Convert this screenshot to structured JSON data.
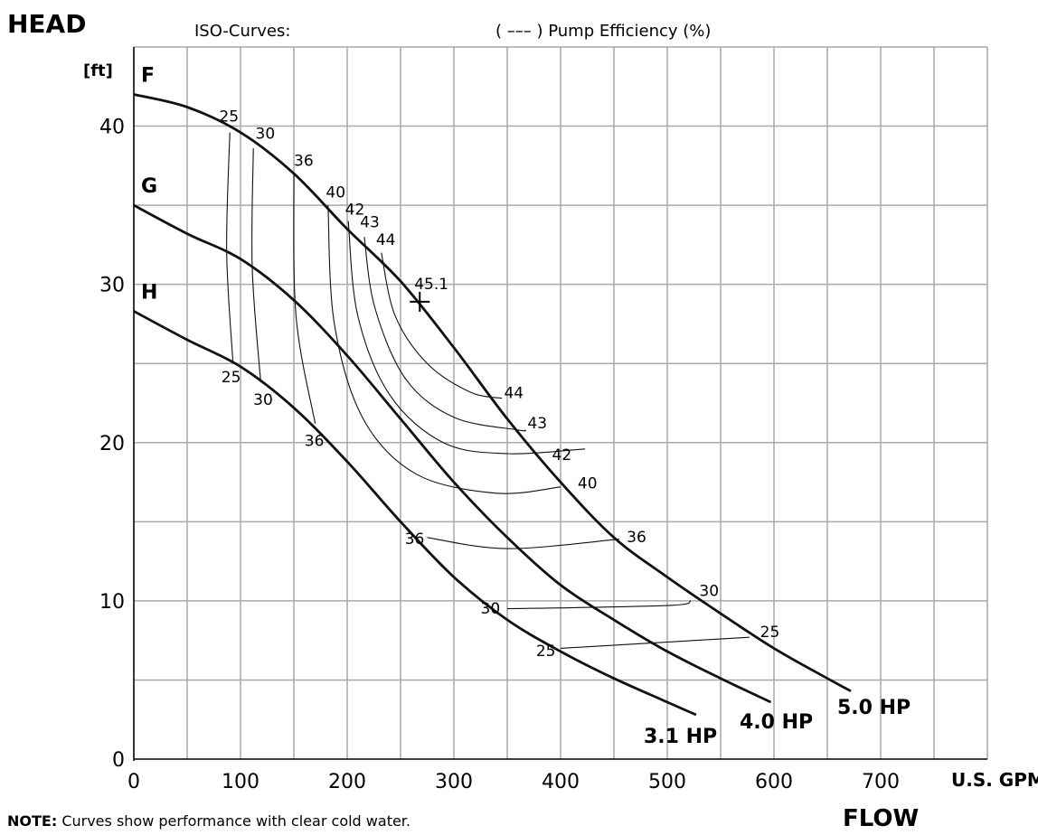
{
  "header": {
    "y_axis_title": "HEAD",
    "y_unit": "[ft]",
    "iso_caption": "ISO-Curves:",
    "efficiency_caption": "( ––– ) Pump Efficiency (%)"
  },
  "footer": {
    "note_bold": "NOTE:",
    "note_text": " Curves show performance with clear cold water.",
    "x_axis_title": "FLOW",
    "x_unit": "U.S. GPM"
  },
  "chart_data": {
    "type": "line",
    "xlabel": "FLOW (U.S. GPM)",
    "ylabel": "HEAD [ft]",
    "xlim": [
      0,
      800
    ],
    "ylim": [
      0,
      45
    ],
    "x_ticks": [
      0,
      100,
      200,
      300,
      400,
      500,
      600,
      700
    ],
    "y_ticks": [
      0,
      10,
      20,
      30,
      40
    ],
    "grid": true,
    "series": [
      {
        "name": "F",
        "power": "5.0 HP",
        "points": [
          [
            0,
            42
          ],
          [
            50,
            41.2
          ],
          [
            100,
            39.6
          ],
          [
            150,
            37
          ],
          [
            200,
            33.5
          ],
          [
            250,
            30.2
          ],
          [
            300,
            26
          ],
          [
            350,
            21.5
          ],
          [
            400,
            17.5
          ],
          [
            450,
            14
          ],
          [
            500,
            11.5
          ],
          [
            550,
            9.2
          ],
          [
            600,
            7
          ],
          [
            650,
            5.1
          ],
          [
            672,
            4.3
          ]
        ]
      },
      {
        "name": "G",
        "power": "4.0 HP",
        "points": [
          [
            0,
            35
          ],
          [
            50,
            33.2
          ],
          [
            100,
            31.6
          ],
          [
            150,
            29
          ],
          [
            200,
            25.5
          ],
          [
            250,
            21.5
          ],
          [
            300,
            17.5
          ],
          [
            350,
            14
          ],
          [
            400,
            11
          ],
          [
            450,
            8.8
          ],
          [
            500,
            6.8
          ],
          [
            550,
            5.1
          ],
          [
            597,
            3.6
          ]
        ]
      },
      {
        "name": "H",
        "power": "3.1 HP",
        "points": [
          [
            0,
            28.3
          ],
          [
            50,
            26.5
          ],
          [
            100,
            24.8
          ],
          [
            150,
            22.2
          ],
          [
            200,
            18.8
          ],
          [
            250,
            15
          ],
          [
            300,
            11.5
          ],
          [
            350,
            8.8
          ],
          [
            400,
            6.8
          ],
          [
            450,
            5.1
          ],
          [
            500,
            3.6
          ],
          [
            527,
            2.8
          ]
        ]
      }
    ],
    "iso_efficiency": [
      {
        "value": 25,
        "points": [
          [
            90,
            39.6
          ],
          [
            87,
            32
          ],
          [
            93,
            25
          ]
        ]
      },
      {
        "value": 30,
        "points": [
          [
            112,
            38.6
          ],
          [
            111,
            31
          ],
          [
            119,
            23.8
          ]
        ]
      },
      {
        "value": 36,
        "points": [
          [
            150,
            37
          ],
          [
            152,
            28
          ],
          [
            170,
            21.2
          ]
        ]
      },
      {
        "value": 40,
        "points": [
          [
            182,
            35
          ],
          [
            188,
            27.5
          ],
          [
            215,
            21.5
          ],
          [
            265,
            18
          ],
          [
            340,
            16.8
          ],
          [
            400,
            17.2
          ]
        ]
      },
      {
        "value": 42,
        "points": [
          [
            201,
            34
          ],
          [
            210,
            28
          ],
          [
            240,
            23
          ],
          [
            290,
            20
          ],
          [
            350,
            19.3
          ],
          [
            423,
            19.6
          ]
        ]
      },
      {
        "value": 43,
        "points": [
          [
            216,
            33
          ],
          [
            226,
            28.5
          ],
          [
            255,
            24
          ],
          [
            300,
            21.6
          ],
          [
            360,
            20.8
          ],
          [
            367,
            20.8
          ]
        ]
      },
      {
        "value": 44,
        "points": [
          [
            232,
            32
          ],
          [
            245,
            28
          ],
          [
            275,
            25
          ],
          [
            315,
            23.2
          ],
          [
            345,
            22.8
          ]
        ]
      },
      {
        "value": 36,
        "points": [
          [
            275,
            14
          ],
          [
            350,
            13.3
          ],
          [
            455,
            13.9
          ]
        ]
      },
      {
        "value": 30,
        "points": [
          [
            350,
            9.5
          ],
          [
            500,
            9.7
          ],
          [
            522,
            10
          ]
        ]
      },
      {
        "value": 25,
        "points": [
          [
            400,
            7
          ],
          [
            577,
            7.7
          ]
        ]
      }
    ],
    "best_efficiency_point": {
      "x": 268,
      "y": 28.9,
      "label": "45.1"
    },
    "iso_labels": [
      {
        "text": "25",
        "x": 80,
        "y": 40.3
      },
      {
        "text": "30",
        "x": 114,
        "y": 39.2
      },
      {
        "text": "36",
        "x": 150,
        "y": 37.5
      },
      {
        "text": "40",
        "x": 180,
        "y": 35.5
      },
      {
        "text": "42",
        "x": 198,
        "y": 34.4
      },
      {
        "text": "43",
        "x": 212,
        "y": 33.6
      },
      {
        "text": "44",
        "x": 227,
        "y": 32.5
      },
      {
        "text": "25",
        "x": 82,
        "y": 23.8
      },
      {
        "text": "30",
        "x": 112,
        "y": 22.4
      },
      {
        "text": "36",
        "x": 160,
        "y": 19.8
      },
      {
        "text": "44",
        "x": 347,
        "y": 22.8
      },
      {
        "text": "43",
        "x": 369,
        "y": 20.9
      },
      {
        "text": "42",
        "x": 392,
        "y": 18.9
      },
      {
        "text": "40",
        "x": 416,
        "y": 17.1
      },
      {
        "text": "36",
        "x": 462,
        "y": 13.7
      },
      {
        "text": "30",
        "x": 530,
        "y": 10.3
      },
      {
        "text": "25",
        "x": 587,
        "y": 7.7
      },
      {
        "text": "36",
        "x": 254,
        "y": 13.6
      },
      {
        "text": "30",
        "x": 325,
        "y": 9.2
      },
      {
        "text": "25",
        "x": 377,
        "y": 6.5
      }
    ]
  }
}
